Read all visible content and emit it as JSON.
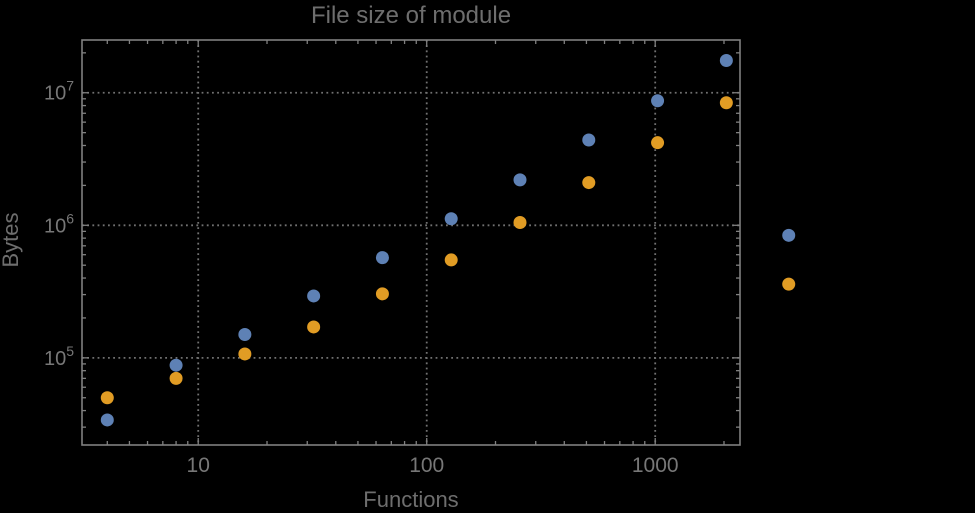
{
  "colors": {
    "background": "#000000",
    "frame": "#808080",
    "grid": "#717171",
    "tick_text": "#777777",
    "label_text": "#6e6e6e",
    "series_blue": "#5E81B5",
    "series_orange": "#E19C24"
  },
  "chart_data": {
    "type": "scatter",
    "title": "File size of module",
    "xlabel": "Functions",
    "ylabel": "Bytes",
    "x_scale": "log",
    "y_scale": "log",
    "xlim": [
      3.1,
      2350
    ],
    "ylim": [
      22000,
      25000000
    ],
    "grid": "dotted-major-gridlines",
    "legend": "none",
    "frame": true,
    "clip_points": false,
    "x_major_ticks": [
      10,
      100,
      1000
    ],
    "x_tick_labels": [
      "10",
      "100",
      "1000"
    ],
    "y_major_ticks": [
      100000,
      1000000,
      10000000
    ],
    "y_tick_labels": [
      {
        "base": "10",
        "exp": "5"
      },
      {
        "base": "10",
        "exp": "6"
      },
      {
        "base": "10",
        "exp": "7"
      }
    ],
    "series": [
      {
        "name": "series-1-blue",
        "color": "#5E81B5",
        "points": [
          [
            4,
            34000
          ],
          [
            8,
            88000
          ],
          [
            16,
            150000
          ],
          [
            32,
            293000
          ],
          [
            64,
            570000
          ],
          [
            128,
            1120000
          ],
          [
            256,
            2200000
          ],
          [
            512,
            4400000
          ],
          [
            1024,
            8700000
          ],
          [
            2048,
            17500000
          ],
          [
            3840,
            840000
          ]
        ]
      },
      {
        "name": "series-2-orange",
        "color": "#E19C24",
        "points": [
          [
            4,
            50000
          ],
          [
            8,
            70000
          ],
          [
            16,
            107000
          ],
          [
            32,
            171000
          ],
          [
            64,
            304000
          ],
          [
            128,
            548000
          ],
          [
            256,
            1050000
          ],
          [
            512,
            2100000
          ],
          [
            1024,
            4200000
          ],
          [
            2048,
            8400000
          ],
          [
            3840,
            360000
          ]
        ]
      }
    ]
  }
}
